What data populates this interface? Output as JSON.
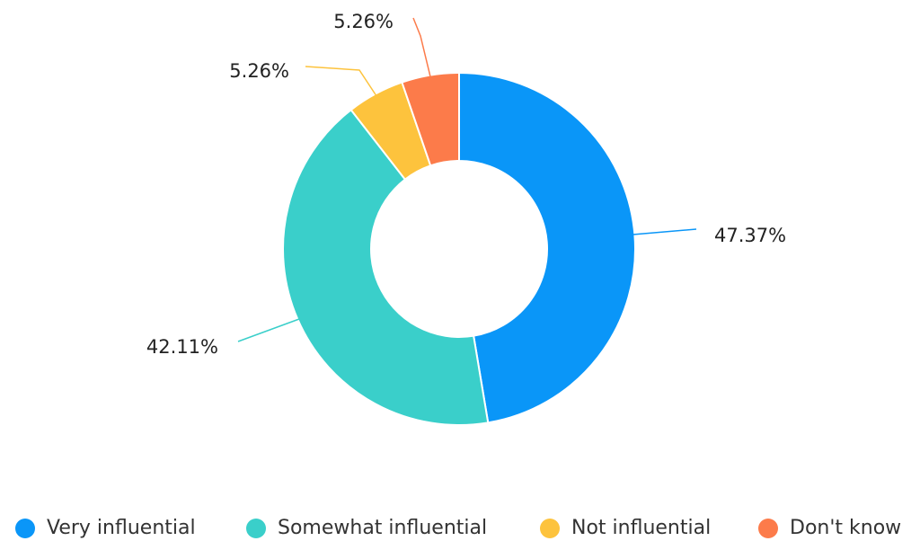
{
  "chart_data": {
    "type": "donut",
    "categories": [
      "Very influential",
      "Somewhat influential",
      "Not influential",
      "Don't know"
    ],
    "values": [
      47.37,
      42.11,
      5.26,
      5.26
    ],
    "value_labels": [
      "47.37%",
      "42.11%",
      "5.26%",
      "5.26%"
    ],
    "colors": [
      "#0a96f8",
      "#3acfca",
      "#fdc33d",
      "#fc7b4a"
    ],
    "legend": "bottom"
  }
}
